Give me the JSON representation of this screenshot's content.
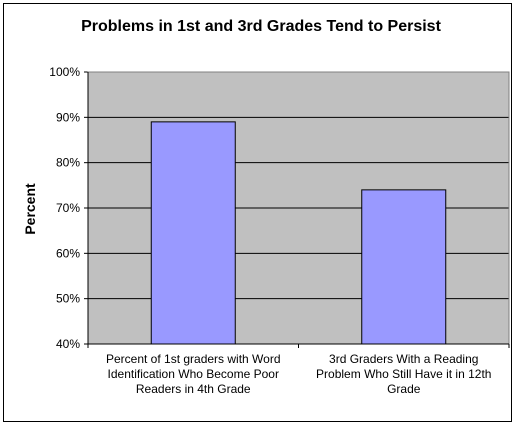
{
  "chart_data": {
    "type": "bar",
    "title": "Problems in 1st and 3rd Grades Tend to Persist",
    "xlabel": "",
    "ylabel": "Percent",
    "ylim": [
      40,
      100
    ],
    "y_ticks": [
      40,
      50,
      60,
      70,
      80,
      90,
      100
    ],
    "y_tick_labels": [
      "40%",
      "50%",
      "60%",
      "70%",
      "80%",
      "90%",
      "100%"
    ],
    "grid": true,
    "legend": "none",
    "categories": [
      [
        "Percent of 1st graders with Word",
        "Identification Who Become Poor",
        "Readers in 4th Grade"
      ],
      [
        "3rd Graders With a Reading",
        "Problem Who Still Have it in 12th",
        "Grade"
      ]
    ],
    "values": [
      89,
      74
    ],
    "colors": {
      "bar_fill": "#9999ff",
      "bar_stroke": "#000000",
      "plot_background": "#c0c0c0",
      "gridline": "#000000"
    }
  }
}
